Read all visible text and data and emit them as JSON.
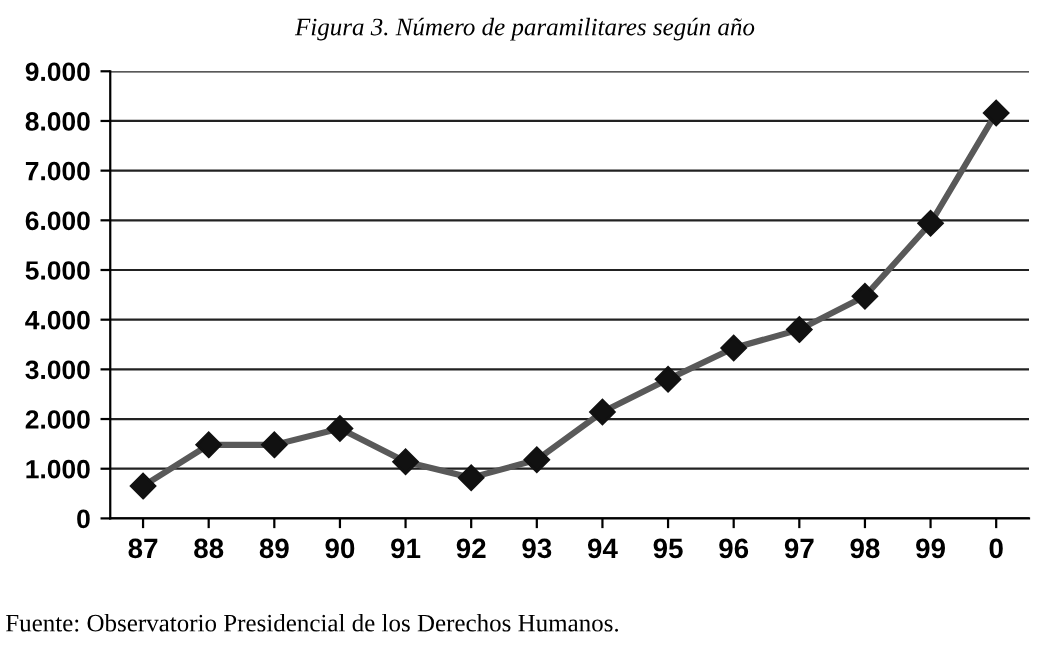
{
  "chart_data": {
    "type": "line",
    "title": "Figura 3. Número de paramilitares según año",
    "categories": [
      "87",
      "88",
      "89",
      "90",
      "91",
      "92",
      "93",
      "94",
      "95",
      "96",
      "97",
      "98",
      "99",
      "0"
    ],
    "series": [
      {
        "color": "#595959",
        "values": [
          650,
          1480,
          1480,
          1810,
          1140,
          820,
          1180,
          2140,
          2800,
          3430,
          3800,
          4470,
          5940,
          8160
        ]
      }
    ],
    "ylim": [
      0,
      9000
    ],
    "yticks": [
      0,
      {
        "value": 1000,
        "label": "1.000"
      },
      {
        "value": 2000,
        "label": "2.000"
      },
      {
        "value": 3000,
        "label": "3.000"
      },
      {
        "value": 4000,
        "label": "4.000"
      },
      {
        "value": 5000,
        "label": "5.000"
      },
      {
        "value": 6000,
        "label": "6.000"
      },
      {
        "value": 7000,
        "label": "7.000"
      },
      {
        "value": 8000,
        "label": "8.000"
      },
      {
        "value": 9000,
        "label": "9.000"
      }
    ],
    "grid": "y",
    "marker": "diamond",
    "line_style": "solid",
    "legend": false,
    "annotations": [
      "Fuente: Observatorio Presidencial de los Derechos Humanos."
    ]
  }
}
